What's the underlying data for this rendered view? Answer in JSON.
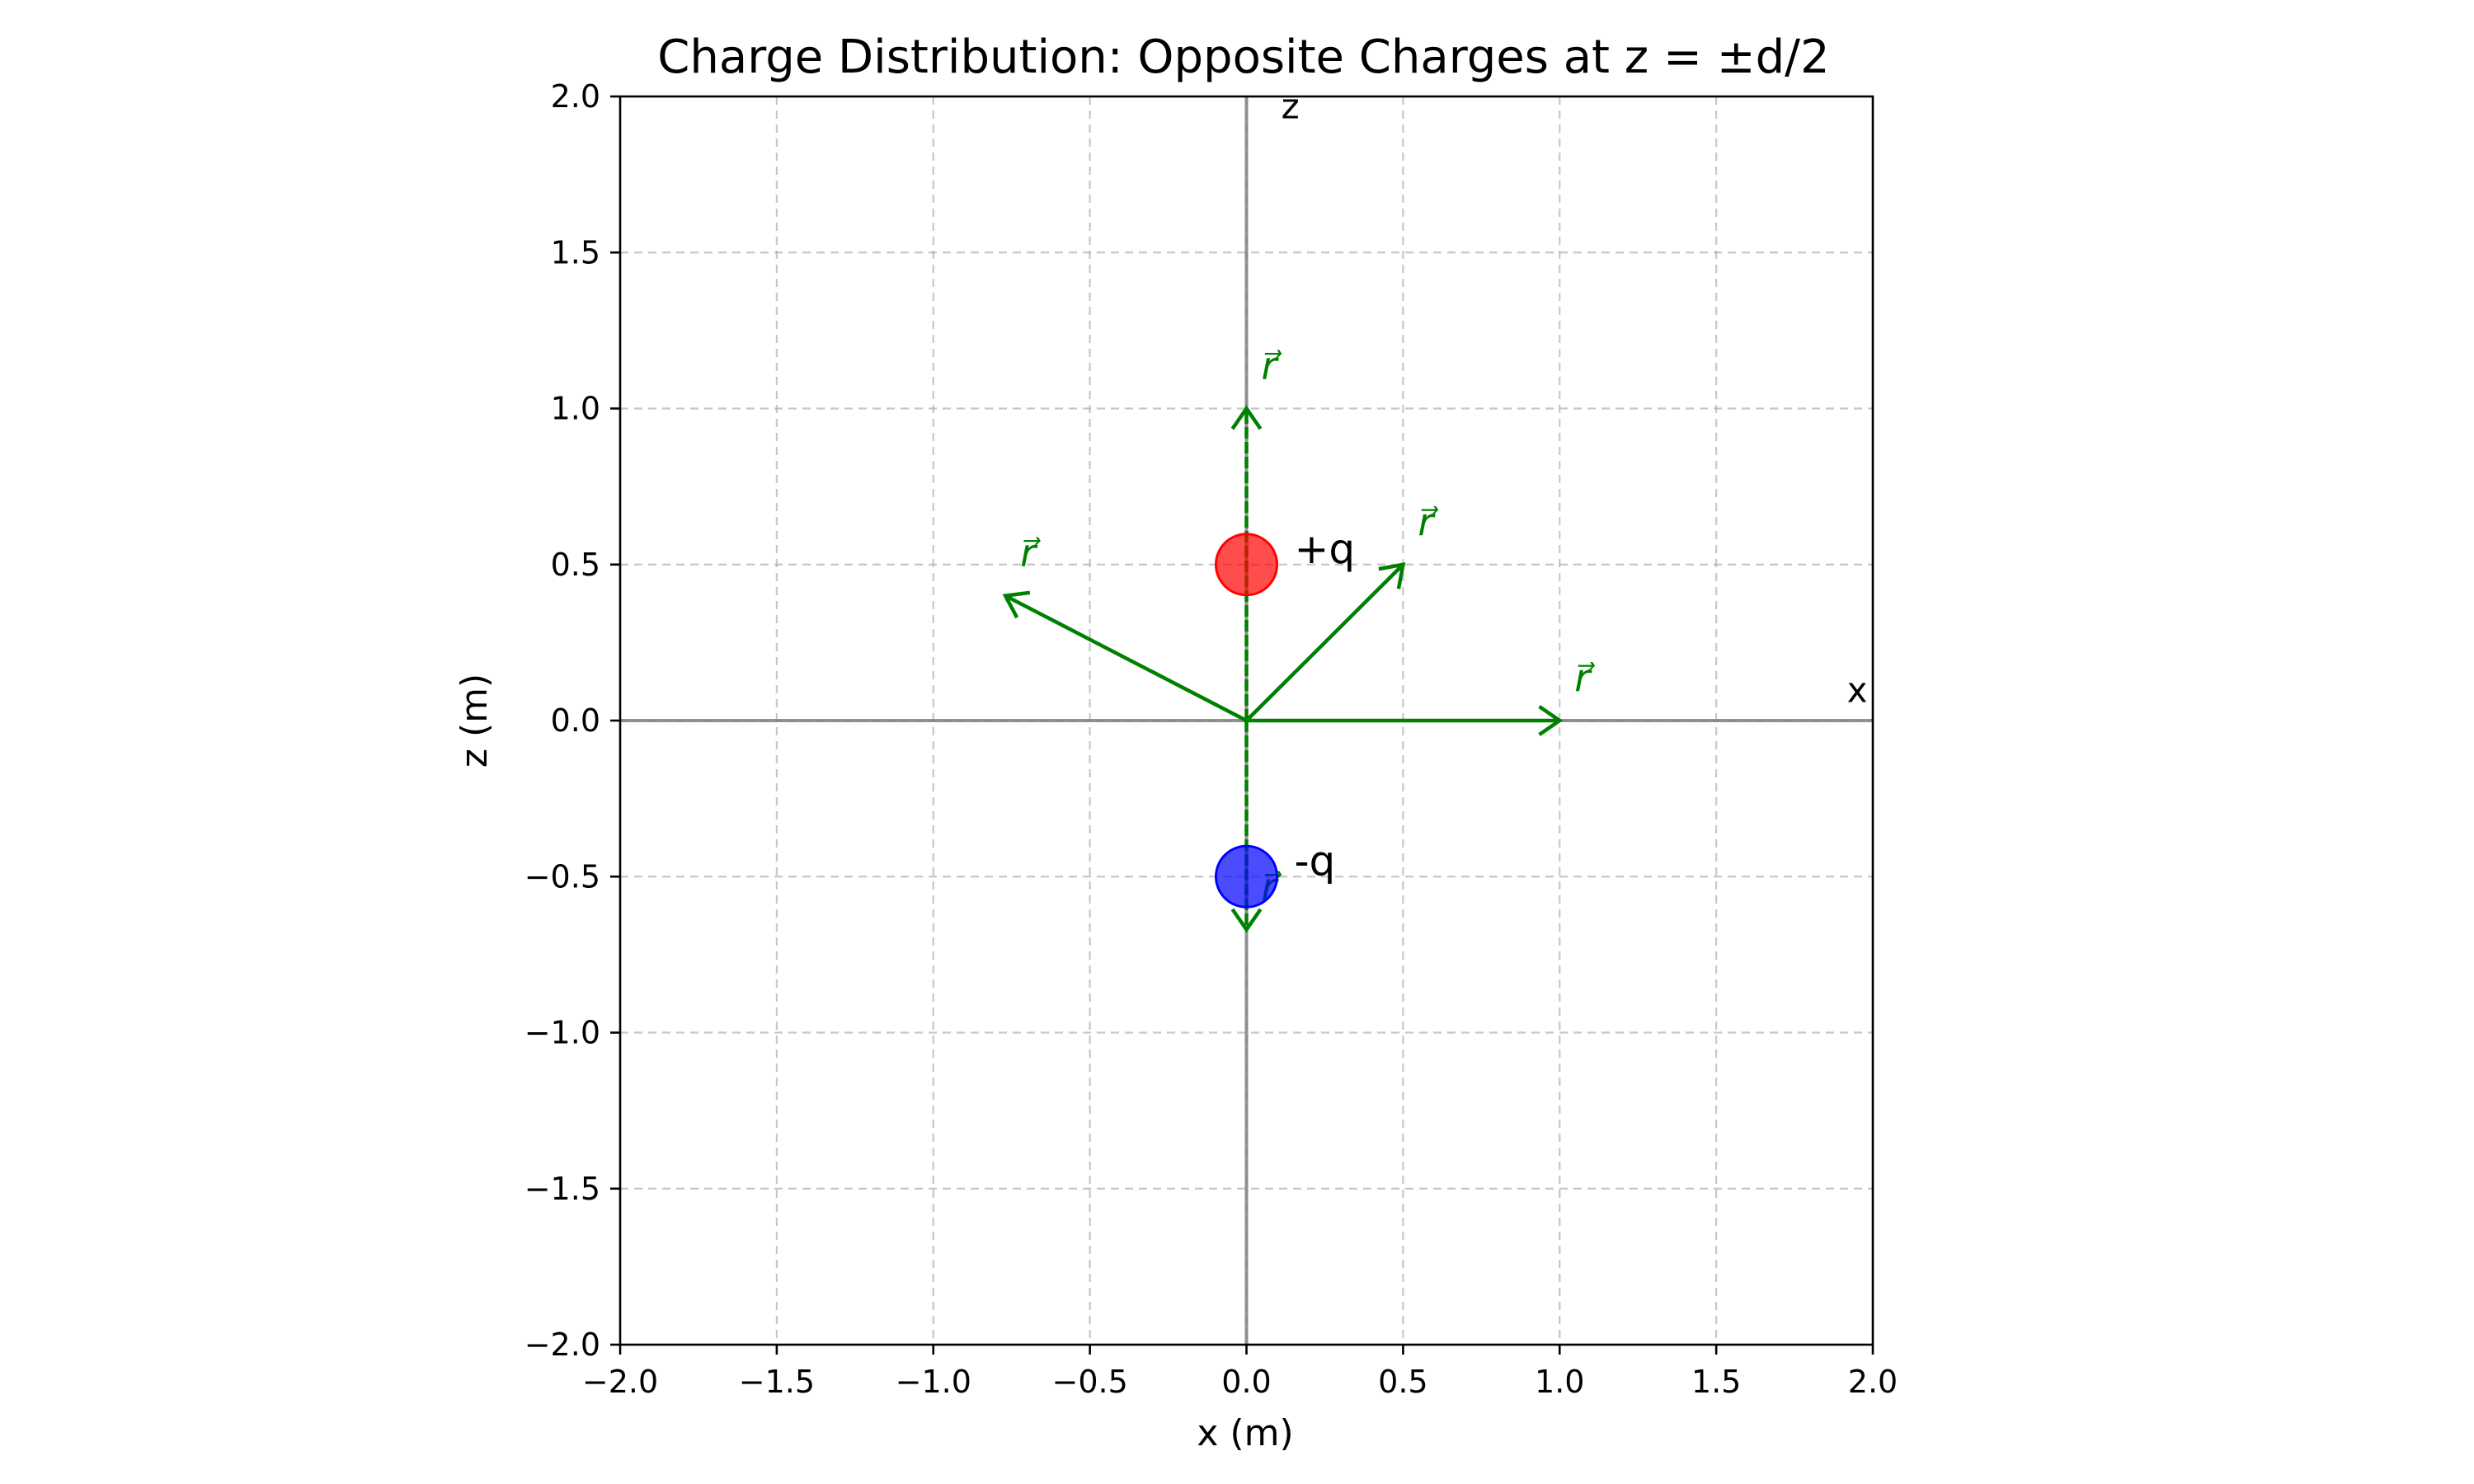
{
  "chart_data": {
    "type": "scatter",
    "title": "Charge Distribution: Opposite Charges at z = ±d/2",
    "xlabel": "x (m)",
    "ylabel": "z (m)",
    "xlim": [
      -2.0,
      2.0
    ],
    "ylim": [
      -2.0,
      2.0
    ],
    "xticks": [
      -2.0,
      -1.5,
      -1.0,
      -0.5,
      0.0,
      0.5,
      1.0,
      1.5,
      2.0
    ],
    "yticks": [
      -2.0,
      -1.5,
      -1.0,
      -0.5,
      0.0,
      0.5,
      1.0,
      1.5,
      2.0
    ],
    "xtick_labels": [
      "−2.0",
      "−1.5",
      "−1.0",
      "−0.5",
      "0.0",
      "0.5",
      "1.0",
      "1.5",
      "2.0"
    ],
    "ytick_labels": [
      "−2.0",
      "−1.5",
      "−1.0",
      "−0.5",
      "0.0",
      "0.5",
      "1.0",
      "1.5",
      "2.0"
    ],
    "grid": true,
    "axis_annotations": {
      "x": "x",
      "z": "z"
    },
    "charges": [
      {
        "x": 0.0,
        "z": 0.5,
        "label": "+q",
        "color": "#ff0000"
      },
      {
        "x": 0.0,
        "z": -0.5,
        "label": "-q",
        "color": "#0000ff"
      }
    ],
    "vectors": [
      {
        "x0": 0.0,
        "z0": 0.0,
        "x1": 0.0,
        "z1": 1.0,
        "label": "r⃗"
      },
      {
        "x0": 0.0,
        "z0": 0.0,
        "x1": 0.5,
        "z1": 0.5,
        "label": "r⃗"
      },
      {
        "x0": 0.0,
        "z0": 0.0,
        "x1": -0.77,
        "z1": 0.4,
        "label": "r⃗"
      },
      {
        "x0": 0.0,
        "z0": 0.0,
        "x1": 1.0,
        "z1": 0.0,
        "label": "r⃗"
      },
      {
        "x0": 0.0,
        "z0": 0.0,
        "x1": 0.0,
        "z1": -0.67,
        "label": "r⃗"
      }
    ],
    "colors": {
      "vector": "#008000",
      "positive_charge": "#ff0000",
      "negative_charge": "#0000ff"
    }
  }
}
